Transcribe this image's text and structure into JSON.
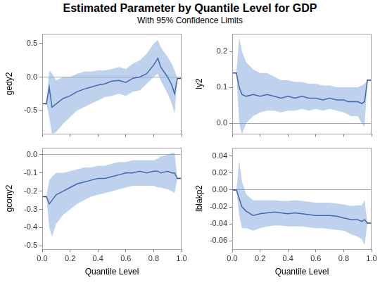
{
  "title": "Estimated Parameter by Quantile Level for GDP",
  "subtitle": "With 95% Confidence Limits",
  "chart_data": [
    {
      "type": "line",
      "ylabel": "gedy2",
      "color": "#1f3f8f",
      "grid": false,
      "tick_labels": "y",
      "xlim": [
        0,
        1
      ],
      "xticks": [
        {
          "value": 0,
          "label": "0.0"
        },
        0.2,
        0.4,
        0.6,
        0.8,
        {
          "value": 1,
          "label": "1.0"
        }
      ],
      "ylim": [
        -0.85,
        0.65
      ],
      "yticks": [
        -0.5,
        {
          "value": 0,
          "label": "0.0"
        },
        0.5
      ],
      "x": [
        0,
        0.03,
        0.05,
        0.07,
        0.1,
        0.15,
        0.2,
        0.25,
        0.3,
        0.35,
        0.4,
        0.45,
        0.5,
        0.55,
        0.6,
        0.65,
        0.7,
        0.75,
        0.8,
        0.83,
        0.85,
        0.9,
        0.93,
        0.95,
        0.97,
        1
      ],
      "values": [
        -0.4,
        -0.4,
        -0.15,
        -0.45,
        -0.4,
        -0.32,
        -0.28,
        -0.22,
        -0.18,
        -0.15,
        -0.12,
        -0.1,
        -0.06,
        -0.05,
        -0.08,
        -0.02,
        0.0,
        0.05,
        0.18,
        0.28,
        0.15,
        0.0,
        -0.12,
        -0.25,
        -0.02,
        -0.02
      ],
      "lower": [
        -0.4,
        -0.4,
        -0.6,
        -0.85,
        -0.82,
        -0.7,
        -0.6,
        -0.5,
        -0.45,
        -0.4,
        -0.35,
        -0.3,
        -0.28,
        -0.25,
        -0.28,
        -0.22,
        -0.2,
        -0.1,
        0.0,
        0.05,
        -0.05,
        -0.25,
        -0.4,
        -0.55,
        -0.02,
        -0.02
      ],
      "upper": [
        -0.4,
        -0.4,
        0.1,
        0.05,
        -0.05,
        0.0,
        0.0,
        0.05,
        0.08,
        0.08,
        0.1,
        0.1,
        0.12,
        0.15,
        0.12,
        0.2,
        0.25,
        0.35,
        0.5,
        0.55,
        0.45,
        0.3,
        0.2,
        0.1,
        -0.02,
        -0.02
      ]
    },
    {
      "type": "line",
      "ylabel": "ly2",
      "color": "#1f3f8f",
      "grid": false,
      "tick_labels": "y",
      "xlim": [
        0,
        1
      ],
      "xticks": [
        {
          "value": 0,
          "label": "0.0"
        },
        0.2,
        0.4,
        0.6,
        0.8,
        {
          "value": 1,
          "label": "1.0"
        }
      ],
      "ylim": [
        -0.03,
        0.25
      ],
      "yticks": [
        {
          "value": 0,
          "label": "0.0"
        },
        0.1,
        0.2
      ],
      "x": [
        0,
        0.03,
        0.05,
        0.07,
        0.1,
        0.15,
        0.2,
        0.25,
        0.3,
        0.35,
        0.4,
        0.45,
        0.5,
        0.55,
        0.6,
        0.65,
        0.7,
        0.75,
        0.8,
        0.83,
        0.85,
        0.9,
        0.93,
        0.95,
        0.97,
        1
      ],
      "values": [
        0.14,
        0.14,
        0.1,
        0.08,
        0.075,
        0.08,
        0.075,
        0.08,
        0.075,
        0.07,
        0.075,
        0.07,
        0.075,
        0.07,
        0.07,
        0.065,
        0.07,
        0.065,
        0.065,
        0.06,
        0.06,
        0.06,
        0.055,
        0.06,
        0.12,
        0.12
      ],
      "lower": [
        0.14,
        0.14,
        0.0,
        -0.03,
        0.0,
        0.02,
        0.03,
        0.035,
        0.035,
        0.03,
        0.035,
        0.035,
        0.04,
        0.035,
        0.04,
        0.035,
        0.04,
        0.035,
        0.03,
        0.025,
        0.02,
        0.02,
        0.0,
        -0.01,
        0.12,
        0.12
      ],
      "upper": [
        0.14,
        0.14,
        0.24,
        0.2,
        0.17,
        0.15,
        0.14,
        0.14,
        0.13,
        0.12,
        0.12,
        0.115,
        0.115,
        0.11,
        0.11,
        0.105,
        0.105,
        0.1,
        0.1,
        0.1,
        0.1,
        0.1,
        0.105,
        0.11,
        0.12,
        0.12
      ]
    },
    {
      "type": "line",
      "ylabel": "gcony2",
      "xlabel": "Quantile Level",
      "color": "#1f3f8f",
      "grid": false,
      "xlim": [
        0,
        1
      ],
      "xticks": [
        {
          "value": 0,
          "label": "0.0"
        },
        0.2,
        0.4,
        0.6,
        0.8,
        {
          "value": 1,
          "label": "1.0"
        }
      ],
      "ylim": [
        -0.52,
        0.04
      ],
      "yticks": [
        -0.5,
        -0.4,
        -0.3,
        -0.2,
        -0.1,
        {
          "value": 0,
          "label": "0.0"
        }
      ],
      "x": [
        0,
        0.03,
        0.05,
        0.07,
        0.1,
        0.15,
        0.2,
        0.25,
        0.3,
        0.35,
        0.4,
        0.45,
        0.5,
        0.55,
        0.6,
        0.65,
        0.7,
        0.75,
        0.8,
        0.83,
        0.85,
        0.9,
        0.93,
        0.95,
        0.97,
        1
      ],
      "values": [
        -0.23,
        -0.23,
        -0.27,
        -0.25,
        -0.22,
        -0.2,
        -0.18,
        -0.16,
        -0.15,
        -0.14,
        -0.13,
        -0.13,
        -0.12,
        -0.11,
        -0.1,
        -0.1,
        -0.09,
        -0.1,
        -0.09,
        -0.09,
        -0.1,
        -0.09,
        -0.1,
        -0.1,
        -0.13,
        -0.13
      ],
      "lower": [
        -0.23,
        -0.23,
        -0.4,
        -0.45,
        -0.38,
        -0.33,
        -0.3,
        -0.27,
        -0.25,
        -0.23,
        -0.22,
        -0.21,
        -0.2,
        -0.19,
        -0.18,
        -0.17,
        -0.17,
        -0.17,
        -0.17,
        -0.18,
        -0.18,
        -0.19,
        -0.2,
        -0.21,
        -0.13,
        -0.13
      ],
      "upper": [
        -0.23,
        -0.23,
        -0.14,
        -0.12,
        -0.1,
        -0.1,
        -0.09,
        -0.08,
        -0.07,
        -0.07,
        -0.06,
        -0.06,
        -0.05,
        -0.04,
        -0.04,
        -0.03,
        -0.03,
        -0.03,
        -0.03,
        -0.02,
        -0.01,
        0.0,
        0.01,
        0.01,
        -0.13,
        -0.13
      ]
    },
    {
      "type": "line",
      "ylabel": "lblakp2",
      "xlabel": "Quantile Level",
      "color": "#1f3f8f",
      "grid": false,
      "xlim": [
        0,
        1
      ],
      "xticks": [
        {
          "value": 0,
          "label": "0.0"
        },
        0.2,
        0.4,
        0.6,
        0.8,
        {
          "value": 1,
          "label": "1.0"
        }
      ],
      "ylim": [
        -0.07,
        0.05
      ],
      "yticks": [
        -0.06,
        -0.04,
        -0.02,
        {
          "value": 0,
          "label": "0.00"
        },
        0.02,
        0.04
      ],
      "x": [
        0,
        0.03,
        0.05,
        0.07,
        0.1,
        0.15,
        0.2,
        0.25,
        0.3,
        0.35,
        0.4,
        0.45,
        0.5,
        0.55,
        0.6,
        0.65,
        0.7,
        0.75,
        0.8,
        0.83,
        0.85,
        0.9,
        0.93,
        0.95,
        0.97,
        1
      ],
      "values": [
        0.0,
        0.0,
        -0.01,
        -0.02,
        -0.025,
        -0.03,
        -0.028,
        -0.027,
        -0.026,
        -0.027,
        -0.028,
        -0.027,
        -0.028,
        -0.029,
        -0.03,
        -0.03,
        -0.03,
        -0.031,
        -0.033,
        -0.034,
        -0.035,
        -0.035,
        -0.037,
        -0.035,
        -0.039,
        -0.039
      ],
      "lower": [
        0.0,
        0.0,
        -0.03,
        -0.045,
        -0.045,
        -0.048,
        -0.045,
        -0.043,
        -0.042,
        -0.042,
        -0.043,
        -0.043,
        -0.043,
        -0.044,
        -0.045,
        -0.045,
        -0.046,
        -0.047,
        -0.048,
        -0.05,
        -0.052,
        -0.055,
        -0.058,
        -0.065,
        -0.039,
        -0.039
      ],
      "upper": [
        0.0,
        0.0,
        0.035,
        0.01,
        -0.005,
        -0.012,
        -0.012,
        -0.012,
        -0.012,
        -0.013,
        -0.013,
        -0.012,
        -0.013,
        -0.014,
        -0.015,
        -0.015,
        -0.015,
        -0.016,
        -0.017,
        -0.018,
        -0.019,
        -0.018,
        -0.018,
        -0.012,
        -0.039,
        -0.039
      ]
    }
  ]
}
